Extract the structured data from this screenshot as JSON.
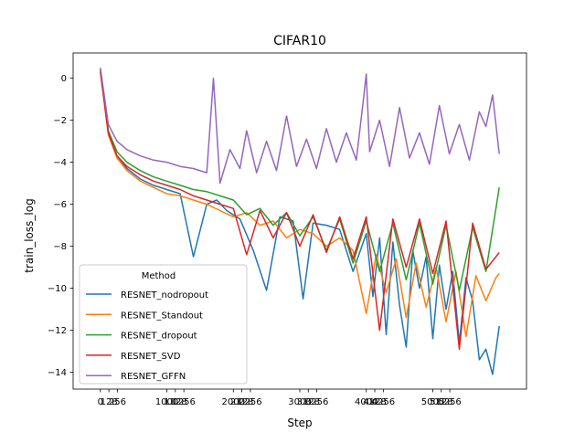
{
  "chart_data": {
    "type": "line",
    "title": "CIFAR10",
    "xlabel": "Step",
    "ylabel": "train_loss_log",
    "xlim": [
      -410,
      6410
    ],
    "ylim": [
      -14.8,
      1.2
    ],
    "x_ticks": [
      0,
      128,
      256,
      1000,
      1128,
      1256,
      2000,
      2128,
      2256,
      3000,
      3128,
      3256,
      4000,
      4128,
      4256,
      5000,
      5128,
      5256
    ],
    "x_tick_labels": [
      "0",
      "128",
      "256",
      "1000",
      "1128",
      "1256",
      "2000",
      "2128",
      "2256",
      "3000",
      "3128",
      "3256",
      "4000",
      "4128",
      "4256",
      "5000",
      "5128",
      "5256"
    ],
    "y_ticks": [
      0,
      -2,
      -4,
      -6,
      -8,
      -10,
      -12,
      -14
    ],
    "y_tick_labels": [
      "0",
      "−2",
      "−4",
      "−6",
      "−8",
      "−10",
      "−12",
      "−14"
    ],
    "grid": false,
    "legend": {
      "title": "Method",
      "placement": "lower-left"
    },
    "series": [
      {
        "name": "RESNET_nodropout",
        "color": "#1f77b4",
        "x": [
          0,
          120,
          250,
          400,
          600,
          800,
          1000,
          1200,
          1400,
          1600,
          1750,
          1900,
          2100,
          2300,
          2500,
          2700,
          2900,
          3050,
          3200,
          3400,
          3600,
          3800,
          4000,
          4100,
          4200,
          4300,
          4400,
          4500,
          4600,
          4700,
          4800,
          4900,
          5000,
          5100,
          5200,
          5300,
          5400,
          5500,
          5600,
          5700,
          5800,
          5900,
          6000
        ],
        "y": [
          0.4,
          -2.6,
          -3.7,
          -4.3,
          -4.8,
          -5.1,
          -5.3,
          -5.5,
          -8.5,
          -6.0,
          -5.8,
          -6.3,
          -6.7,
          -8.2,
          -10.1,
          -6.6,
          -6.8,
          -10.5,
          -6.9,
          -7.0,
          -7.2,
          -9.2,
          -7.4,
          -10.4,
          -7.6,
          -12.2,
          -7.8,
          -10.8,
          -12.8,
          -8.2,
          -10.0,
          -8.5,
          -12.4,
          -8.9,
          -11.0,
          -9.2,
          -12.6,
          -9.5,
          -10.6,
          -13.4,
          -12.9,
          -14.1,
          -11.8
        ]
      },
      {
        "name": "RESNET_Standout",
        "color": "#ff7f0e",
        "x": [
          0,
          120,
          250,
          400,
          600,
          800,
          1000,
          1200,
          1400,
          1600,
          1800,
          2000,
          2200,
          2400,
          2600,
          2800,
          3000,
          3200,
          3400,
          3600,
          3800,
          4000,
          4150,
          4300,
          4450,
          4600,
          4750,
          4900,
          5050,
          5200,
          5350,
          5500,
          5650,
          5800,
          5950,
          6000
        ],
        "y": [
          0.3,
          -2.7,
          -3.8,
          -4.4,
          -4.9,
          -5.2,
          -5.5,
          -5.6,
          -5.8,
          -6.0,
          -6.3,
          -6.6,
          -6.4,
          -7.0,
          -6.8,
          -7.6,
          -7.2,
          -7.4,
          -8.0,
          -7.6,
          -8.2,
          -11.2,
          -8.4,
          -10.2,
          -8.6,
          -11.4,
          -8.8,
          -10.9,
          -9.0,
          -11.6,
          -9.2,
          -12.3,
          -9.4,
          -10.6,
          -9.5,
          -9.3
        ]
      },
      {
        "name": "RESNET_dropout",
        "color": "#2ca02c",
        "x": [
          0,
          120,
          250,
          400,
          600,
          800,
          1000,
          1200,
          1400,
          1600,
          1800,
          2000,
          2200,
          2400,
          2600,
          2800,
          3000,
          3200,
          3400,
          3600,
          3800,
          4000,
          4200,
          4400,
          4600,
          4800,
          5000,
          5200,
          5400,
          5600,
          5800,
          6000
        ],
        "y": [
          0.4,
          -2.5,
          -3.5,
          -4.0,
          -4.4,
          -4.7,
          -4.9,
          -5.1,
          -5.3,
          -5.4,
          -5.6,
          -5.8,
          -6.5,
          -6.2,
          -7.0,
          -6.4,
          -7.5,
          -6.6,
          -8.2,
          -6.7,
          -8.8,
          -6.8,
          -9.2,
          -6.9,
          -9.6,
          -6.9,
          -9.8,
          -7.0,
          -10.1,
          -7.1,
          -9.2,
          -5.2
        ]
      },
      {
        "name": "RESNET_SVD",
        "color": "#d62728",
        "x": [
          0,
          120,
          250,
          400,
          600,
          800,
          1000,
          1200,
          1400,
          1600,
          1800,
          2000,
          2200,
          2400,
          2600,
          2800,
          3000,
          3200,
          3400,
          3600,
          3800,
          4000,
          4200,
          4400,
          4600,
          4800,
          5000,
          5200,
          5400,
          5600,
          5800,
          6000
        ],
        "y": [
          0.3,
          -2.6,
          -3.7,
          -4.2,
          -4.6,
          -4.9,
          -5.1,
          -5.3,
          -5.6,
          -5.8,
          -6.0,
          -6.2,
          -8.4,
          -6.3,
          -7.6,
          -6.4,
          -8.0,
          -6.5,
          -8.3,
          -6.6,
          -8.6,
          -6.6,
          -12.0,
          -6.7,
          -9.0,
          -6.7,
          -9.3,
          -6.8,
          -12.9,
          -6.9,
          -9.1,
          -8.3
        ]
      },
      {
        "name": "RESNET_GFFN",
        "color": "#9467bd",
        "x": [
          0,
          120,
          250,
          400,
          600,
          800,
          1000,
          1200,
          1400,
          1600,
          1700,
          1800,
          1950,
          2100,
          2200,
          2350,
          2500,
          2650,
          2800,
          2950,
          3100,
          3250,
          3400,
          3550,
          3700,
          3850,
          3950,
          4000,
          4050,
          4200,
          4350,
          4500,
          4650,
          4800,
          4950,
          5100,
          5250,
          5400,
          5550,
          5700,
          5800,
          5900,
          6000
        ],
        "y": [
          0.5,
          -2.2,
          -3.0,
          -3.4,
          -3.7,
          -3.9,
          -4.0,
          -4.2,
          -4.3,
          -4.5,
          0.0,
          -5.0,
          -3.4,
          -4.3,
          -2.5,
          -4.5,
          -3.0,
          -4.4,
          -1.8,
          -4.2,
          -2.9,
          -4.3,
          -2.4,
          -4.0,
          -2.6,
          -3.9,
          -1.2,
          0.2,
          -3.5,
          -2.0,
          -4.2,
          -1.4,
          -3.8,
          -2.6,
          -4.1,
          -1.3,
          -3.6,
          -2.2,
          -3.9,
          -1.6,
          -2.3,
          -0.8,
          -3.6
        ]
      }
    ]
  }
}
